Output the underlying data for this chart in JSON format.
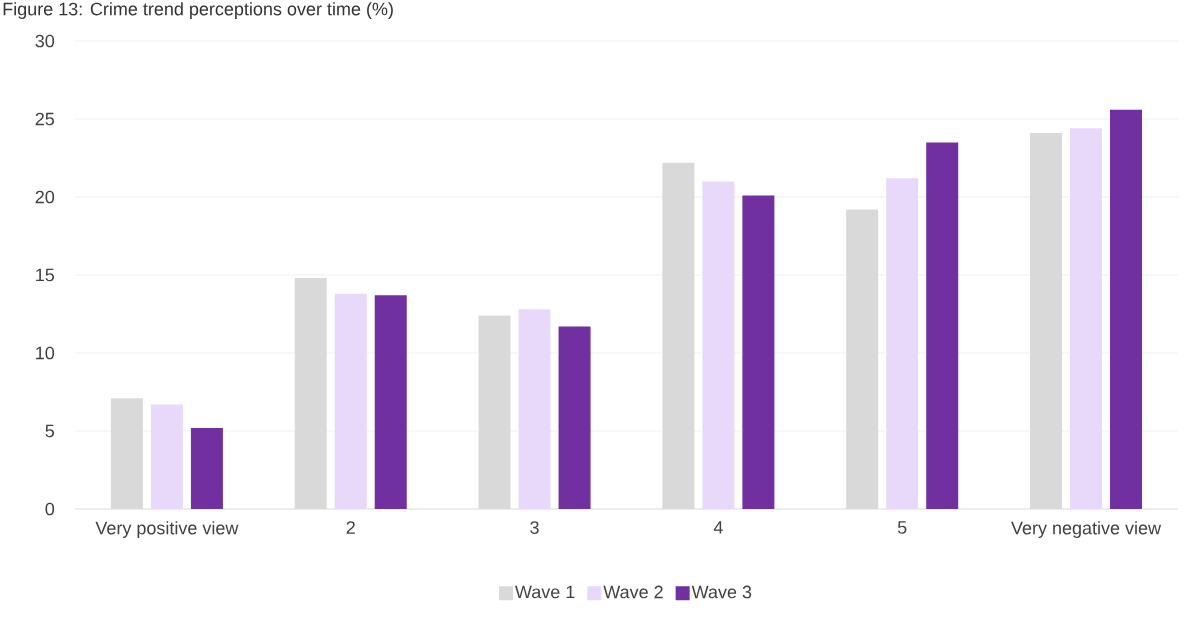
{
  "chart_data": {
    "type": "bar",
    "title": "Figure 13: Crime trend perceptions over time (%)",
    "categories": [
      "Very positive view",
      "2",
      "3",
      "4",
      "5",
      "Very negative view"
    ],
    "series": [
      {
        "name": "Wave 1",
        "color": "#d9d9d9",
        "values": [
          7.1,
          14.8,
          12.4,
          22.2,
          19.2,
          24.1
        ]
      },
      {
        "name": "Wave 2",
        "color": "#e8d9fb",
        "values": [
          6.7,
          13.8,
          12.8,
          21.0,
          21.2,
          24.4
        ]
      },
      {
        "name": "Wave 3",
        "color": "#7030a0",
        "values": [
          5.2,
          13.7,
          11.7,
          20.1,
          23.5,
          25.6
        ]
      }
    ],
    "ylim": [
      0,
      30
    ],
    "yticks": [
      0,
      5,
      10,
      15,
      20,
      25,
      30
    ],
    "grid": "y",
    "legend": "bottom"
  }
}
